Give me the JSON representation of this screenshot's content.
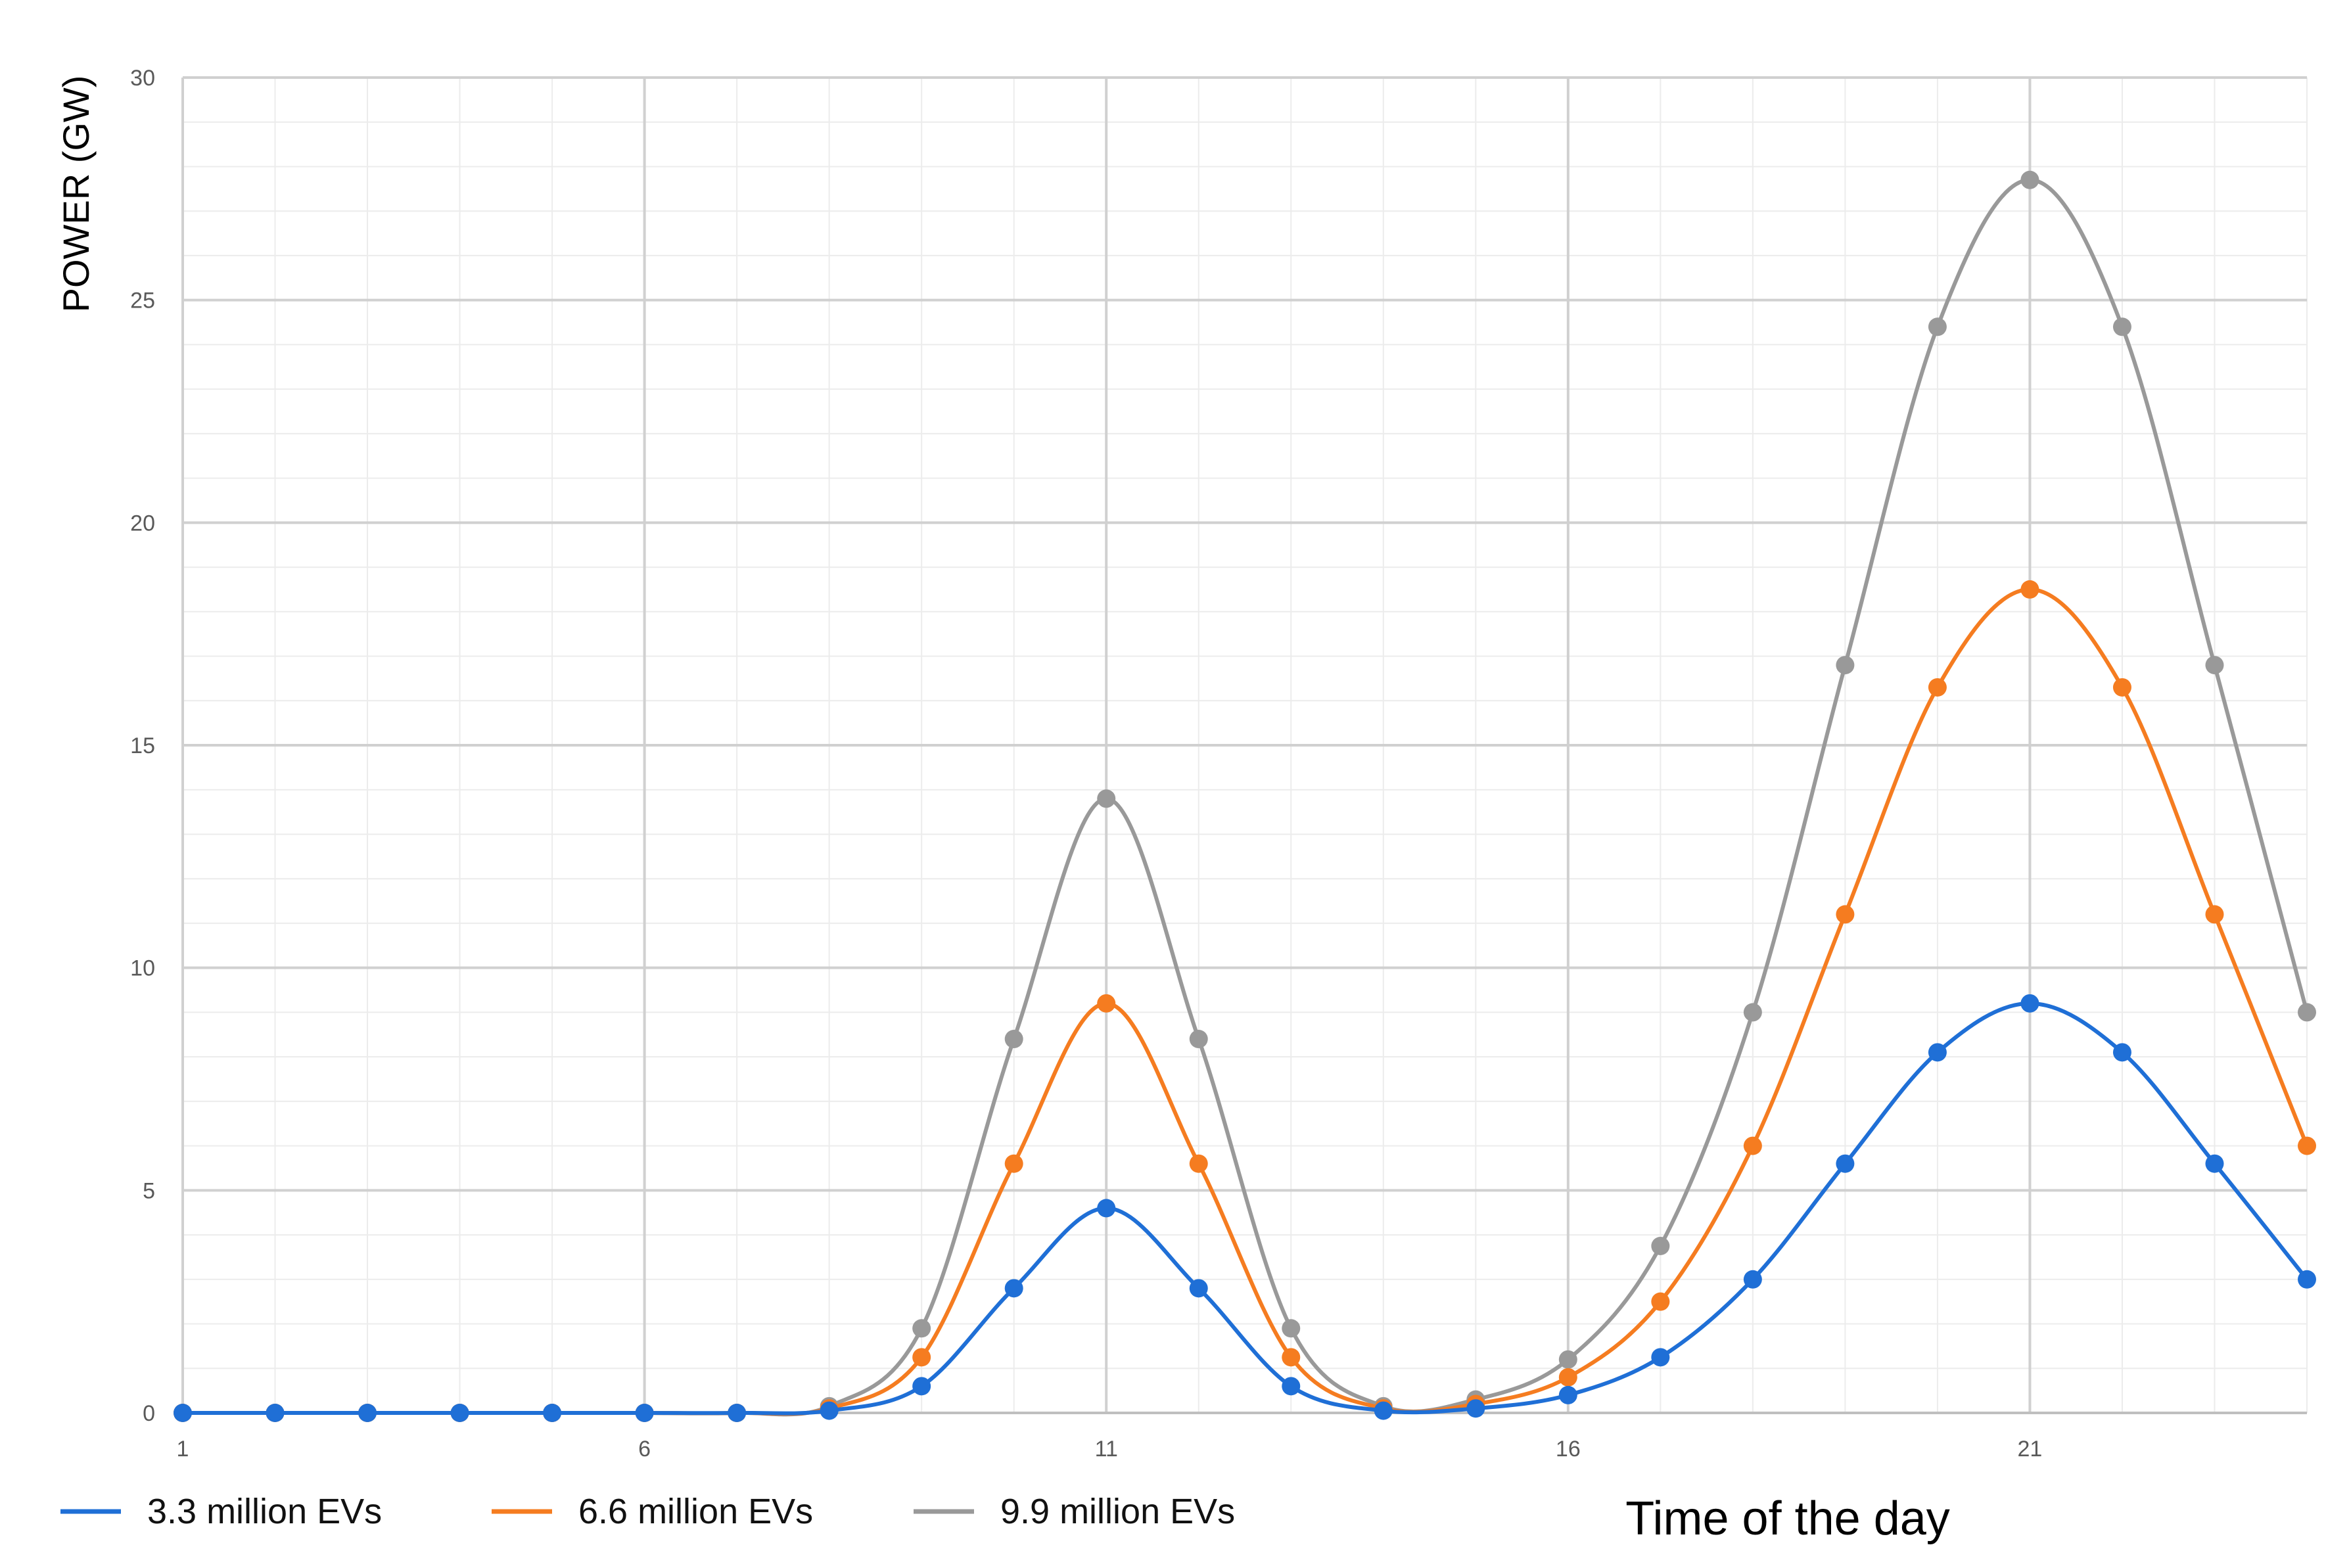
{
  "chart_data": {
    "type": "line",
    "xlabel": "Time of the day",
    "ylabel": "POWER (GW)",
    "xlim": [
      1,
      24
    ],
    "ylim": [
      0,
      30
    ],
    "x_ticks": [
      1,
      6,
      11,
      16,
      21
    ],
    "y_ticks": [
      0,
      5,
      10,
      15,
      20,
      25,
      30
    ],
    "grid": true,
    "legend_position": "bottom",
    "x": [
      1,
      2,
      3,
      4,
      5,
      6,
      7,
      8,
      9,
      10,
      11,
      12,
      13,
      14,
      15,
      16,
      17,
      18,
      19,
      20,
      21,
      22,
      23,
      24
    ],
    "series": [
      {
        "name": "3.3 million EVs",
        "color": "#1f6fd6",
        "values": [
          0,
          0,
          0,
          0,
          0,
          0,
          0,
          0.05,
          0.6,
          2.8,
          4.6,
          2.8,
          0.6,
          0.05,
          0.1,
          0.4,
          1.25,
          3,
          5.6,
          8.1,
          9.2,
          8.1,
          5.6,
          3
        ]
      },
      {
        "name": "6.6 million EVs",
        "color": "#f57c20",
        "values": [
          0,
          0,
          0,
          0,
          0,
          0,
          0,
          0.1,
          1.25,
          5.6,
          9.2,
          5.6,
          1.25,
          0.1,
          0.2,
          0.8,
          2.5,
          6,
          11.2,
          16.3,
          18.5,
          16.3,
          11.2,
          6
        ]
      },
      {
        "name": "9.9 million EVs",
        "color": "#999999",
        "values": [
          0,
          0,
          0,
          0,
          0,
          0,
          0,
          0.15,
          1.9,
          8.4,
          13.8,
          8.4,
          1.9,
          0.15,
          0.3,
          1.2,
          3.75,
          9,
          16.8,
          24.4,
          27.7,
          24.4,
          16.8,
          9
        ]
      }
    ]
  }
}
